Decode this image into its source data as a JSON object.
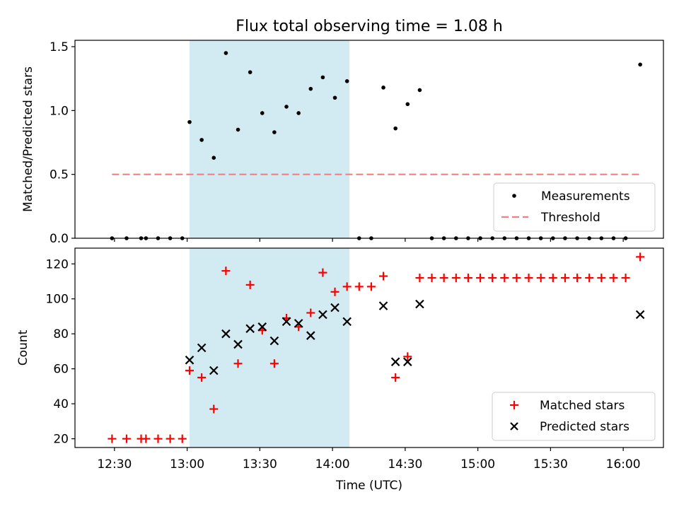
{
  "figure": {
    "title": "Flux total observing time = 1.08 h",
    "xlabel": "Time (UTC)",
    "xticks": [
      {
        "t": 30,
        "label": "12:30"
      },
      {
        "t": 60,
        "label": "13:00"
      },
      {
        "t": 90,
        "label": "13:30"
      },
      {
        "t": 120,
        "label": "14:00"
      },
      {
        "t": 150,
        "label": "14:30"
      },
      {
        "t": 180,
        "label": "15:00"
      },
      {
        "t": 210,
        "label": "15:30"
      },
      {
        "t": 240,
        "label": "16:00"
      }
    ],
    "shaded_interval": {
      "start": "13:01",
      "end": "14:07",
      "color": "#add8e6"
    }
  },
  "chart_data": [
    {
      "type": "scatter",
      "title": "Flux total observing time = 1.08 h",
      "xlabel": "",
      "ylabel": "Matched/Predicted stars",
      "ylim": [
        0,
        1.55
      ],
      "yticks": [
        "0.0",
        "0.5",
        "1.0",
        "1.5"
      ],
      "legend_position": "lower right",
      "grid": false,
      "series": [
        {
          "name": "Measurements",
          "marker": "dot",
          "color": "#000000",
          "x": [
            "12:29",
            "12:35",
            "12:41",
            "12:43",
            "12:48",
            "12:53",
            "12:58",
            "13:01",
            "13:06",
            "13:11",
            "13:16",
            "13:21",
            "13:26",
            "13:31",
            "13:36",
            "13:41",
            "13:46",
            "13:51",
            "13:56",
            "14:01",
            "14:06",
            "14:11",
            "14:16",
            "14:21",
            "14:26",
            "14:31",
            "14:36",
            "14:41",
            "14:46",
            "14:51",
            "14:56",
            "15:01",
            "15:06",
            "15:11",
            "15:16",
            "15:21",
            "15:26",
            "15:31",
            "15:36",
            "15:41",
            "15:46",
            "15:51",
            "15:56",
            "16:01",
            "16:07"
          ],
          "y": [
            0,
            0,
            0,
            0,
            0,
            0,
            0,
            0.91,
            0.77,
            0.63,
            1.45,
            0.85,
            1.3,
            0.98,
            0.83,
            1.03,
            0.98,
            1.17,
            1.26,
            1.1,
            1.23,
            0,
            0,
            1.18,
            0.86,
            1.05,
            1.16,
            0,
            0,
            0,
            0,
            0,
            0,
            0,
            0,
            0,
            0,
            0,
            0,
            0,
            0,
            0,
            0,
            0,
            1.36
          ]
        },
        {
          "name": "Threshold",
          "style": "dashed",
          "color": "#f08080",
          "x": [
            "12:29",
            "16:07"
          ],
          "y": [
            0.5,
            0.5
          ]
        }
      ]
    },
    {
      "type": "scatter",
      "xlabel": "Time (UTC)",
      "ylabel": "Count",
      "ylim": [
        15,
        129
      ],
      "yticks": [
        "20",
        "40",
        "60",
        "80",
        "100",
        "120"
      ],
      "legend_position": "lower right",
      "grid": false,
      "series": [
        {
          "name": "Matched stars",
          "marker": "plus",
          "color": "#ff0000",
          "x": [
            "12:29",
            "12:35",
            "12:41",
            "12:43",
            "12:48",
            "12:53",
            "12:58",
            "13:01",
            "13:06",
            "13:11",
            "13:16",
            "13:21",
            "13:26",
            "13:31",
            "13:36",
            "13:41",
            "13:46",
            "13:51",
            "13:56",
            "14:01",
            "14:06",
            "14:11",
            "14:16",
            "14:21",
            "14:26",
            "14:31",
            "14:36",
            "14:41",
            "14:46",
            "14:51",
            "14:56",
            "15:01",
            "15:06",
            "15:11",
            "15:16",
            "15:21",
            "15:26",
            "15:31",
            "15:36",
            "15:41",
            "15:46",
            "15:51",
            "15:56",
            "16:01",
            "16:07"
          ],
          "y": [
            20,
            20,
            20,
            20,
            20,
            20,
            20,
            59,
            55,
            37,
            116,
            63,
            108,
            82,
            63,
            89,
            84,
            92,
            115,
            104,
            107,
            107,
            107,
            113,
            55,
            67,
            112,
            112,
            112,
            112,
            112,
            112,
            112,
            112,
            112,
            112,
            112,
            112,
            112,
            112,
            112,
            112,
            112,
            112,
            124
          ]
        },
        {
          "name": "Predicted stars",
          "marker": "x",
          "color": "#000000",
          "x": [
            "13:01",
            "13:06",
            "13:11",
            "13:16",
            "13:21",
            "13:26",
            "13:31",
            "13:36",
            "13:41",
            "13:46",
            "13:51",
            "13:56",
            "14:01",
            "14:06",
            "14:21",
            "14:26",
            "14:31",
            "14:36",
            "16:07"
          ],
          "y": [
            65,
            72,
            59,
            80,
            74,
            83,
            84,
            76,
            87,
            86,
            79,
            91,
            95,
            87,
            96,
            64,
            64,
            97,
            91
          ]
        }
      ]
    }
  ]
}
